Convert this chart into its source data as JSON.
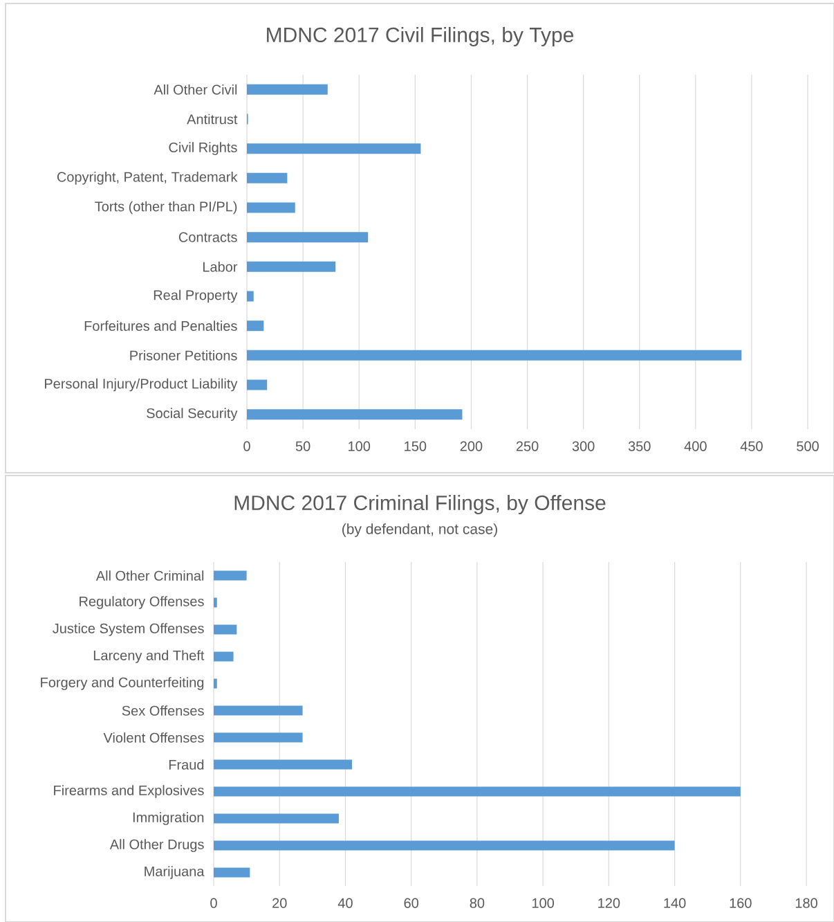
{
  "chart_data": [
    {
      "type": "bar",
      "orientation": "horizontal",
      "title": "MDNC 2017 Civil Filings, by Type",
      "categories": [
        "All Other Civil",
        "Antitrust",
        "Civil Rights",
        "Copyright, Patent, Trademark",
        "Torts (other than PI/PL)",
        "Contracts",
        "Labor",
        "Real Property",
        "Forfeitures and Penalties",
        "Prisoner Petitions",
        "Personal Injury/Product Liability",
        "Social Security"
      ],
      "values": [
        72,
        1,
        155,
        36,
        43,
        108,
        79,
        6,
        15,
        441,
        18,
        192
      ],
      "color": "#5b9bd5",
      "xlim": [
        0,
        500
      ],
      "xticks": [
        0,
        50,
        100,
        150,
        200,
        250,
        300,
        350,
        400,
        450,
        500
      ],
      "grid": "x"
    },
    {
      "type": "bar",
      "orientation": "horizontal",
      "title": "MDNC 2017 Criminal Filings, by Offense",
      "subtitle": "(by defendant, not case)",
      "categories": [
        "All Other Criminal",
        "Regulatory Offenses",
        "Justice System Offenses",
        "Larceny and Theft",
        "Forgery and Counterfeiting",
        "Sex Offenses",
        "Violent Offenses",
        "Fraud",
        "Firearms and Explosives",
        "Immigration",
        "All Other Drugs",
        "Marijuana"
      ],
      "values": [
        10,
        1,
        7,
        6,
        1,
        27,
        27,
        42,
        160,
        38,
        140,
        11
      ],
      "color": "#5b9bd5",
      "xlim": [
        0,
        180
      ],
      "xticks": [
        0,
        20,
        40,
        60,
        80,
        100,
        120,
        140,
        160,
        180
      ],
      "grid": "x"
    }
  ]
}
